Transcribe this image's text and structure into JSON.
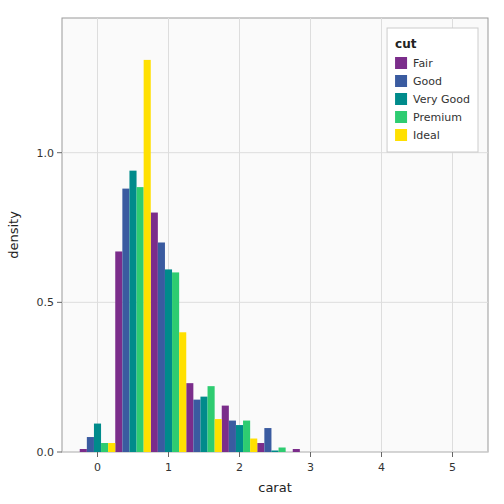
{
  "chart_data": {
    "type": "bar",
    "xlabel": "carat",
    "ylabel": "density",
    "legend_title": "cut",
    "x": [
      0.0,
      0.5,
      1.0,
      1.5,
      2.0,
      2.5,
      3.0
    ],
    "series": [
      {
        "name": "Fair",
        "color": "#7B2D8B",
        "values": [
          0.01,
          0.67,
          0.8,
          0.23,
          0.155,
          0.03,
          0.01
        ]
      },
      {
        "name": "Good",
        "color": "#3A5BA0",
        "values": [
          0.05,
          0.88,
          0.7,
          0.175,
          0.105,
          0.08,
          0.0
        ]
      },
      {
        "name": "Very Good",
        "color": "#008B8B",
        "values": [
          0.095,
          0.94,
          0.61,
          0.185,
          0.09,
          0.005,
          0.0
        ]
      },
      {
        "name": "Premium",
        "color": "#2ECC71",
        "values": [
          0.03,
          0.885,
          0.6,
          0.22,
          0.105,
          0.015,
          0.0
        ]
      },
      {
        "name": "Ideal",
        "color": "#FFE000",
        "values": [
          0.03,
          1.31,
          0.4,
          0.11,
          0.045,
          0.0,
          0.0
        ]
      }
    ],
    "xlim": [
      -0.5,
      5.5
    ],
    "ylim": [
      0.0,
      1.45
    ],
    "xticks": [
      0,
      1,
      2,
      3,
      4,
      5
    ],
    "yticks": [
      {
        "value": 0.0,
        "label": "0.0"
      },
      0.5,
      {
        "value": 1.0,
        "label": "1.0"
      }
    ],
    "grid": true,
    "legend": "upper right"
  }
}
